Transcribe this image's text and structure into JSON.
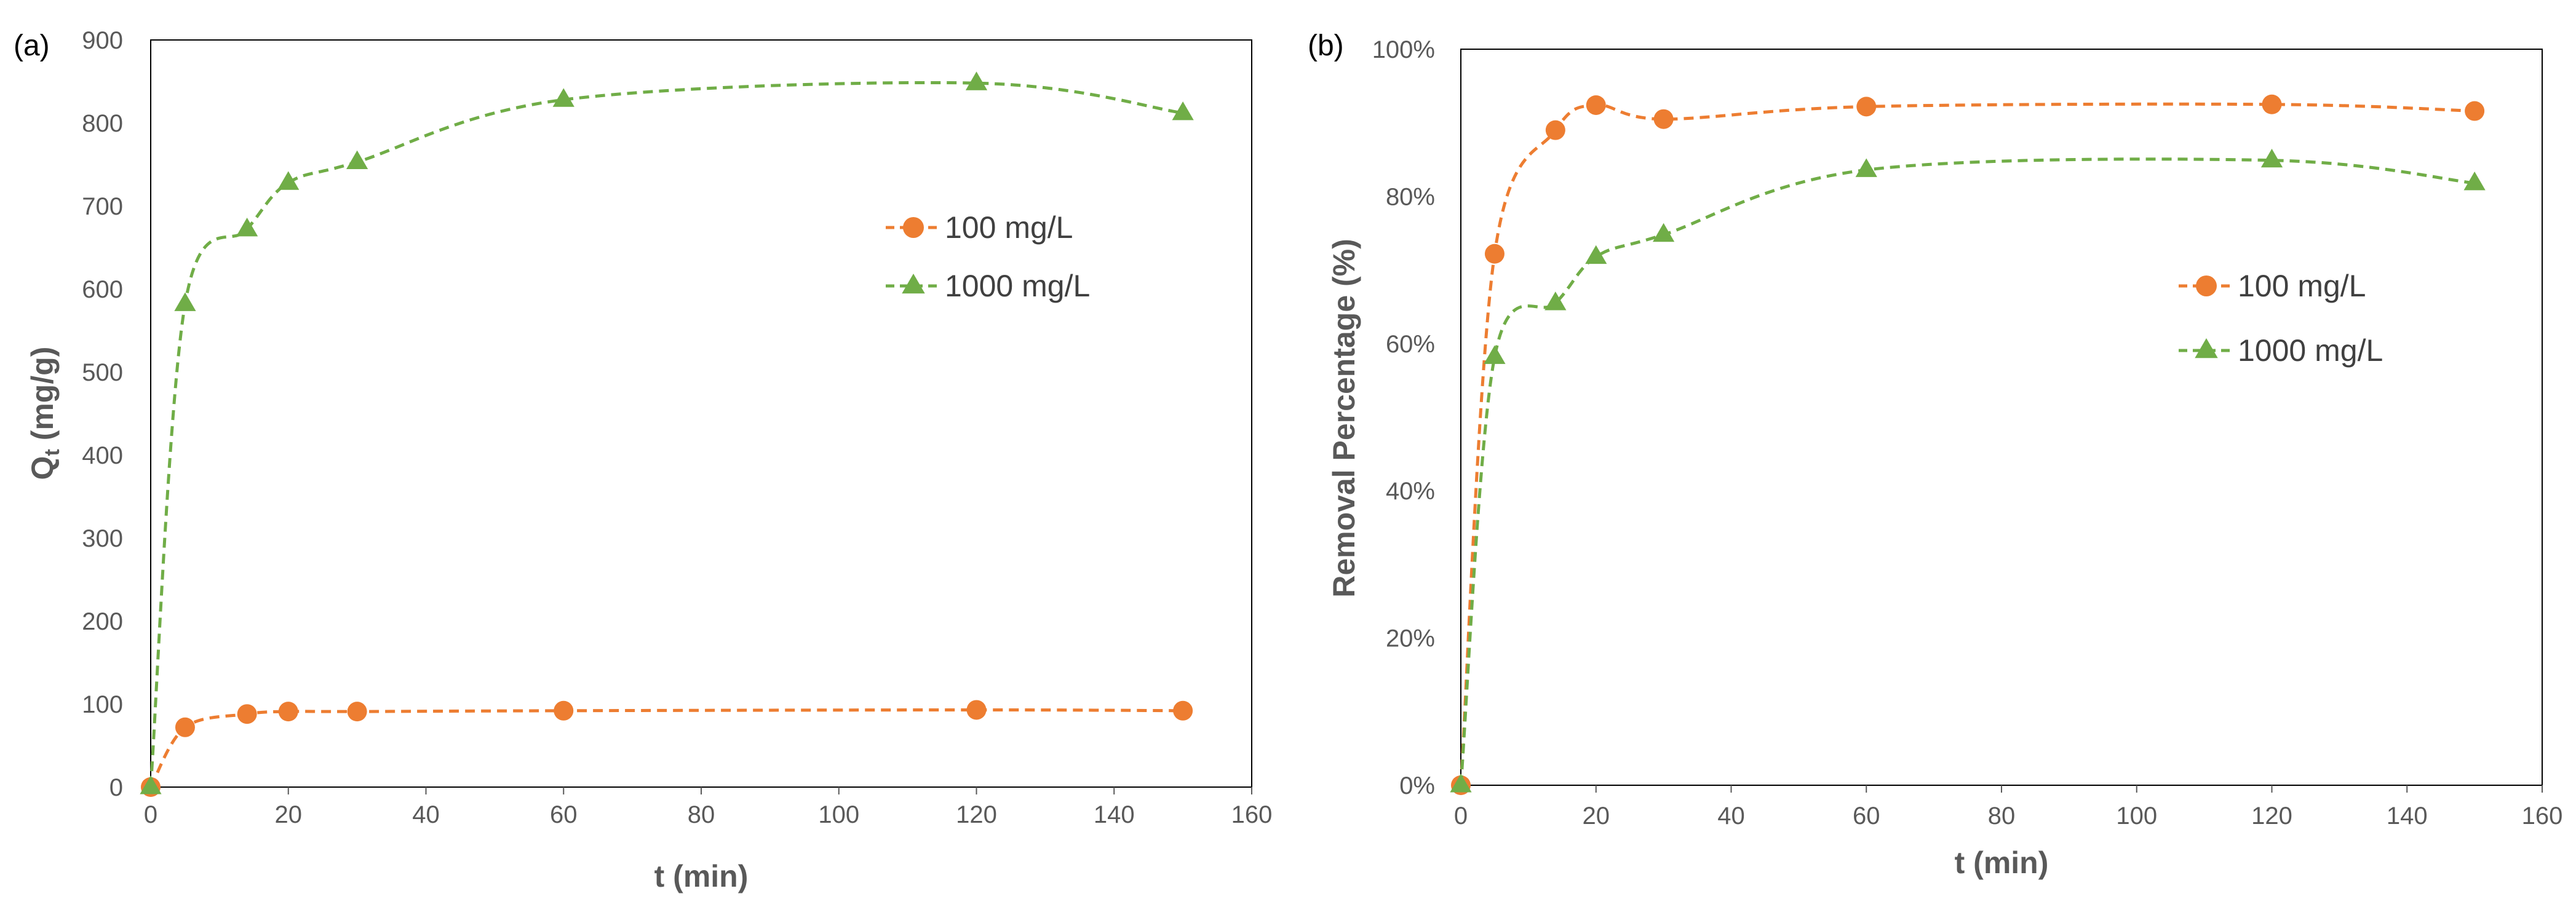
{
  "colors": {
    "series_100": "#ED7D31",
    "series_1000": "#70AD47",
    "axis": "#595959",
    "frame": "#000000"
  },
  "chart_data": [
    {
      "panel_label": "(a)",
      "type": "line",
      "marker_style": "dashed-with-markers",
      "title": "",
      "xlabel": "t (min)",
      "ylabel": "Qt (mg/g)",
      "ylabel_main": "Q",
      "ylabel_sub": "t",
      "ylabel_rest": " (mg/g)",
      "xlim": [
        0,
        160
      ],
      "ylim": [
        0,
        900
      ],
      "xticks": [
        0,
        20,
        40,
        60,
        80,
        100,
        120,
        140,
        160
      ],
      "yticks": [
        0,
        100,
        200,
        300,
        400,
        500,
        600,
        700,
        800,
        900
      ],
      "ytick_format": "number",
      "grid": false,
      "legend_position": "right-upper",
      "x": [
        0,
        5,
        14,
        20,
        30,
        60,
        120,
        150
      ],
      "series": [
        {
          "name": "100 mg/L",
          "marker": "circle",
          "color_key": "series_100",
          "values": [
            0,
            72,
            88,
            91,
            91,
            92,
            93,
            92
          ]
        },
        {
          "name": "1000 mg/L",
          "marker": "triangle",
          "color_key": "series_1000",
          "values": [
            0,
            582,
            672,
            728,
            753,
            828,
            848,
            812
          ]
        }
      ]
    },
    {
      "panel_label": "(b)",
      "type": "line",
      "marker_style": "dashed-with-markers",
      "title": "",
      "xlabel": "t (min)",
      "ylabel": "Removal Percentage (%)",
      "xlim": [
        0,
        160
      ],
      "ylim": [
        0,
        100
      ],
      "xticks": [
        0,
        20,
        40,
        60,
        80,
        100,
        120,
        140,
        160
      ],
      "yticks": [
        0,
        20,
        40,
        60,
        80,
        100
      ],
      "ytick_format": "percent",
      "grid": false,
      "legend_position": "right-middle",
      "x": [
        0,
        5,
        14,
        20,
        30,
        60,
        120,
        150
      ],
      "series": [
        {
          "name": "100 mg/L",
          "marker": "circle",
          "color_key": "series_100",
          "values": [
            0,
            72.2,
            89,
            92.4,
            90.5,
            92.2,
            92.5,
            91.6
          ]
        },
        {
          "name": "1000 mg/L",
          "marker": "triangle",
          "color_key": "series_1000",
          "values": [
            0,
            58.2,
            65.5,
            71.8,
            74.8,
            83.6,
            84.9,
            81.8
          ]
        }
      ]
    }
  ]
}
